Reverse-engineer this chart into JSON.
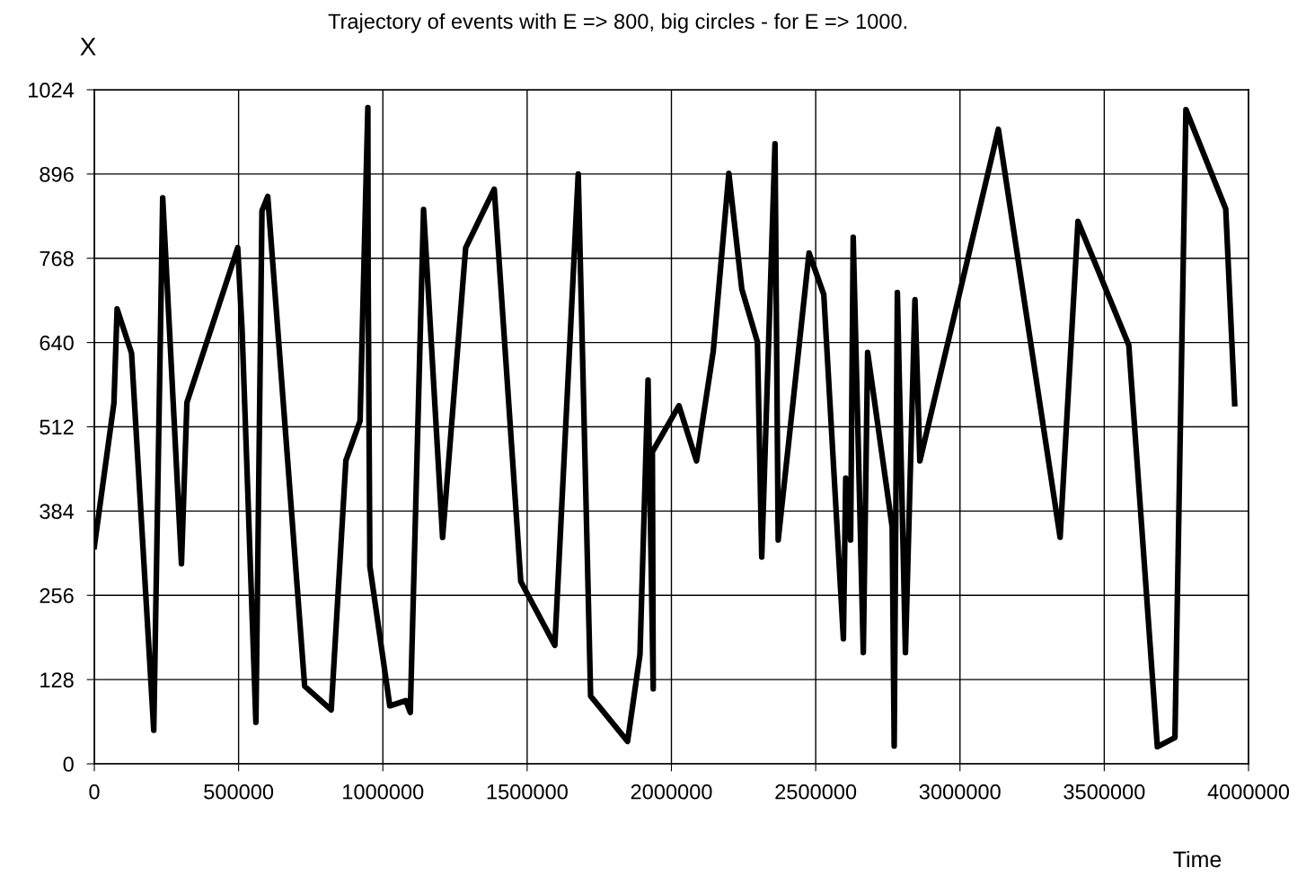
{
  "chart_data": {
    "type": "line",
    "title": "Trajectory of events with E => 800, big circles - for E => 1000.",
    "xlabel": "Time",
    "ylabel": "X",
    "xlim": [
      0,
      4000000
    ],
    "xticks": [
      0,
      500000,
      1000000,
      1500000,
      2000000,
      2500000,
      3000000,
      3500000,
      4000000
    ],
    "ylim": [
      0,
      1024
    ],
    "yticks": [
      0,
      128,
      256,
      384,
      512,
      640,
      768,
      896,
      1024
    ],
    "grid": true,
    "marker": "none",
    "line_style": "solid",
    "series": [
      {
        "color": "#000000",
        "x": [
          0,
          68000,
          79000,
          129000,
          206000,
          237000,
          302000,
          321000,
          497000,
          512000,
          560000,
          581000,
          601000,
          729000,
          821000,
          872000,
          921000,
          948000,
          949000,
          955000,
          1024000,
          1080000,
          1095000,
          1141000,
          1207000,
          1287000,
          1386000,
          1478000,
          1596000,
          1677000,
          1720000,
          1848000,
          1891000,
          1919000,
          1937000,
          1934000,
          2026000,
          2087000,
          2145000,
          2199000,
          2244000,
          2298000,
          2313000,
          2359000,
          2370000,
          2477000,
          2528000,
          2596000,
          2604000,
          2621000,
          2630000,
          2665000,
          2680000,
          2765000,
          2772000,
          2783000,
          2811000,
          2844000,
          2861000,
          3133000,
          3347000,
          3409000,
          3585000,
          3684000,
          3745000,
          3783000,
          3921000,
          3952000
        ],
        "values": [
          330,
          548,
          691,
          624,
          51,
          860,
          304,
          549,
          784,
          660,
          63,
          840,
          862,
          118,
          82,
          461,
          521,
          997,
          740,
          300,
          88,
          96,
          78,
          842,
          344,
          784,
          873,
          277,
          180,
          896,
          103,
          34,
          166,
          583,
          114,
          474,
          544,
          460,
          627,
          897,
          721,
          641,
          314,
          942,
          340,
          776,
          713,
          190,
          434,
          340,
          800,
          169,
          625,
          360,
          27,
          716,
          169,
          705,
          460,
          964,
          344,
          824,
          636,
          26,
          40,
          994,
          843,
          547
        ]
      }
    ]
  }
}
